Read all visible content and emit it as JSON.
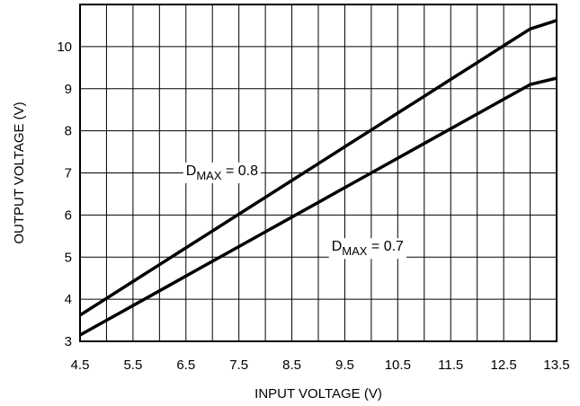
{
  "chart_data": {
    "type": "line",
    "xlabel": "INPUT VOLTAGE (V)",
    "ylabel": "OUTPUT VOLTAGE (V)",
    "xlim": [
      4.5,
      13.5
    ],
    "ylim": [
      3,
      11
    ],
    "x_ticks": [
      "4.5",
      "5.5",
      "6.5",
      "7.5",
      "8.5",
      "9.5",
      "10.5",
      "11.5",
      "12.5",
      "13.5"
    ],
    "y_ticks": [
      "3",
      "4",
      "5",
      "6",
      "7",
      "8",
      "9",
      "10"
    ],
    "grid": true,
    "x_grid_step": 0.5,
    "y_grid_step": 1,
    "series": [
      {
        "x": [
          4.5,
          5.0,
          5.5,
          6.0,
          6.5,
          7.0,
          7.5,
          8.0,
          8.5,
          9.0,
          9.5,
          10.0,
          10.5,
          11.0,
          11.5,
          12.0,
          12.5,
          13.0,
          13.5
        ],
        "y": [
          3.62,
          4.02,
          4.42,
          4.82,
          5.22,
          5.62,
          6.02,
          6.42,
          6.82,
          7.22,
          7.62,
          8.02,
          8.42,
          8.82,
          9.22,
          9.62,
          10.02,
          10.42,
          10.62
        ]
      },
      {
        "x": [
          4.5,
          5.0,
          5.5,
          6.0,
          6.5,
          7.0,
          7.5,
          8.0,
          8.5,
          9.0,
          9.5,
          10.0,
          10.5,
          11.0,
          11.5,
          12.0,
          12.5,
          13.0,
          13.5
        ],
        "y": [
          3.15,
          3.5,
          3.85,
          4.2,
          4.55,
          4.9,
          5.25,
          5.6,
          5.95,
          6.3,
          6.65,
          7.0,
          7.35,
          7.7,
          8.05,
          8.4,
          8.75,
          9.1,
          9.25
        ]
      }
    ],
    "annotations": [
      {
        "main": "D",
        "sub": "MAX",
        "rest": " = 0.8",
        "x": 6.5,
        "y": 6.95
      },
      {
        "main": "D",
        "sub": "MAX",
        "rest": " = 0.7",
        "x": 9.25,
        "y": 5.15
      }
    ]
  }
}
